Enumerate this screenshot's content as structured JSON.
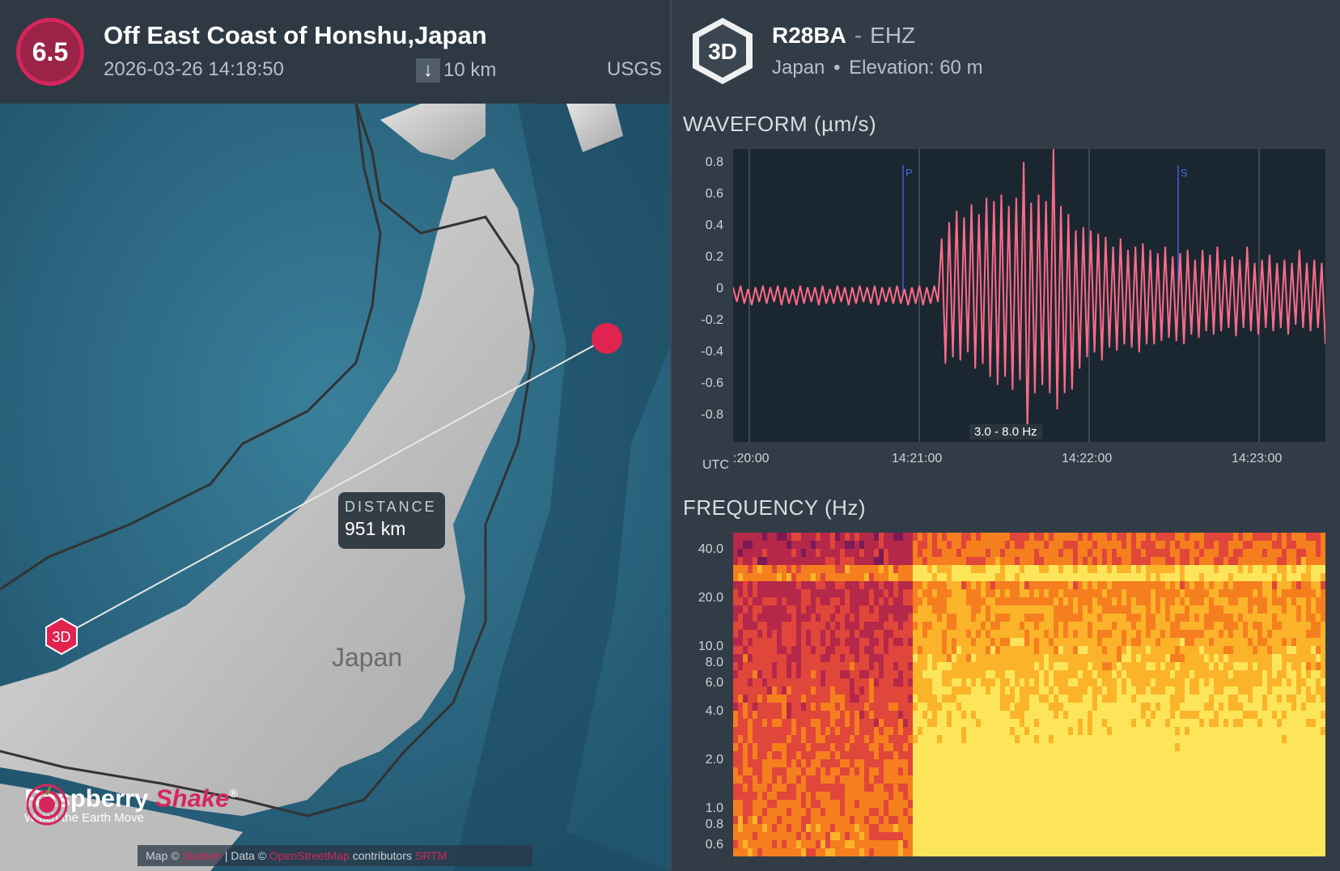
{
  "event": {
    "magnitude": "6.5",
    "title": "Off East Coast of Honshu,Japan",
    "datetime": "2026-03-26 14:18:50",
    "depth": "10 km",
    "source": "USGS",
    "depth_icon": "arrow-down-icon"
  },
  "map": {
    "distance_label": "DISTANCE",
    "distance_value": "951 km",
    "country_label": "Japan",
    "station_marker": "3D",
    "brand_name_1": "Raspberry",
    "brand_name_2": "Shake",
    "brand_reg": "®",
    "brand_tagline": "Watch the Earth Move",
    "attribution_map": "Map ©",
    "attribution_map_link": "Stamen",
    "attribution_data": "| Data ©",
    "attribution_data_link": "OpenStreetMap",
    "attribution_contrib": "contributors",
    "attribution_license": "SRTM",
    "colors": {
      "sea": "#2f6f8a",
      "land": "#cfcfcf",
      "marker": "#e0234f"
    }
  },
  "station": {
    "badge": "3D",
    "name": "R28BA",
    "separator": "-",
    "channel": "EHZ",
    "country": "Japan",
    "bullet": "•",
    "elevation": "Elevation: 60 m"
  },
  "waveform": {
    "title": "WAVEFORM (µm/s)",
    "utc_label": "UTC",
    "band": "3.0 - 8.0 Hz",
    "p_label": "P",
    "s_label": "S",
    "color": "#ff6b86"
  },
  "frequency": {
    "title": "FREQUENCY (Hz)"
  },
  "chart_data": [
    {
      "type": "line",
      "title": "WAVEFORM (µm/s)",
      "xlabel": "UTC",
      "ylabel": "µm/s",
      "ylim": [
        -0.9,
        0.9
      ],
      "yticks": [
        "0.8",
        "0.6",
        "0.4",
        "0.2",
        "0",
        "-0.2",
        "-0.4",
        "-0.6",
        "-0.8"
      ],
      "xticks": [
        ":20:00",
        "14:21:00",
        "14:22:00",
        "14:23:00"
      ],
      "phase_markers": [
        {
          "name": "P",
          "time": "14:20:54"
        },
        {
          "name": "S",
          "time": "14:22:53"
        }
      ],
      "series": [
        {
          "values": [
            0.05,
            -0.04,
            0.06,
            -0.05,
            0.04,
            -0.06,
            0.05,
            -0.04,
            0.06,
            -0.05,
            0.05,
            -0.04,
            0.06,
            -0.06,
            0.05,
            -0.05,
            0.04,
            -0.06,
            0.06,
            -0.05,
            0.05,
            -0.04,
            0.05,
            -0.06,
            0.06,
            -0.05,
            0.04,
            -0.05,
            0.06,
            -0.04,
            0.05,
            -0.06,
            0.05,
            -0.05,
            0.06,
            -0.04,
            0.05,
            -0.05,
            0.06,
            -0.06,
            0.05,
            -0.04,
            0.05,
            -0.05,
            0.06,
            -0.05,
            0.04,
            -0.06,
            0.05,
            -0.05,
            0.06,
            -0.06,
            0.05,
            -0.05,
            0.06,
            -0.04,
            0.35,
            -0.42,
            0.45,
            -0.38,
            0.52,
            -0.4,
            0.48,
            -0.35,
            0.56,
            -0.45,
            0.5,
            -0.42,
            0.6,
            -0.5,
            0.58,
            -0.55,
            0.62,
            -0.5,
            0.55,
            -0.58,
            0.6,
            -0.52,
            0.82,
            -0.85,
            0.57,
            -0.6,
            0.62,
            -0.55,
            0.58,
            -0.6,
            0.9,
            -0.7,
            0.55,
            -0.6,
            0.5,
            -0.58,
            0.4,
            -0.45,
            0.42,
            -0.38,
            0.4,
            -0.35,
            0.38,
            -0.4,
            0.36,
            -0.32,
            0.3,
            -0.34,
            0.35,
            -0.3,
            0.28,
            -0.32,
            0.3,
            -0.35,
            0.32,
            -0.3,
            0.28,
            -0.3,
            0.26,
            -0.28,
            0.3,
            -0.26,
            0.24,
            -0.28,
            0.26,
            -0.3,
            0.28,
            -0.24,
            0.22,
            -0.26,
            0.28,
            -0.22,
            0.25,
            -0.24,
            0.3,
            -0.22,
            0.22,
            -0.2,
            0.24,
            -0.25,
            0.22,
            -0.2,
            0.3,
            -0.22,
            0.2,
            -0.24,
            0.22,
            -0.2,
            0.25,
            -0.22,
            0.2,
            -0.2,
            0.22,
            -0.24,
            0.2,
            -0.18,
            0.28,
            -0.2,
            0.2,
            -0.22,
            0.22,
            -0.2,
            0.2,
            -0.3
          ]
        }
      ]
    },
    {
      "type": "heatmap",
      "title": "FREQUENCY (Hz)",
      "yscale": "log",
      "yticks": [
        "40.0",
        "20.0",
        "10.0",
        "8.0",
        "6.0",
        "4.0",
        "2.0",
        "1.0",
        "0.8",
        "0.6"
      ],
      "xlabel": "UTC",
      "x_range_utc": [
        "14:19:50",
        "14:23:30"
      ],
      "colormap": [
        "#7b1a57",
        "#b5284a",
        "#e0463a",
        "#f57f1f",
        "#fbb32a",
        "#fde55a"
      ],
      "description_free": false
    }
  ]
}
